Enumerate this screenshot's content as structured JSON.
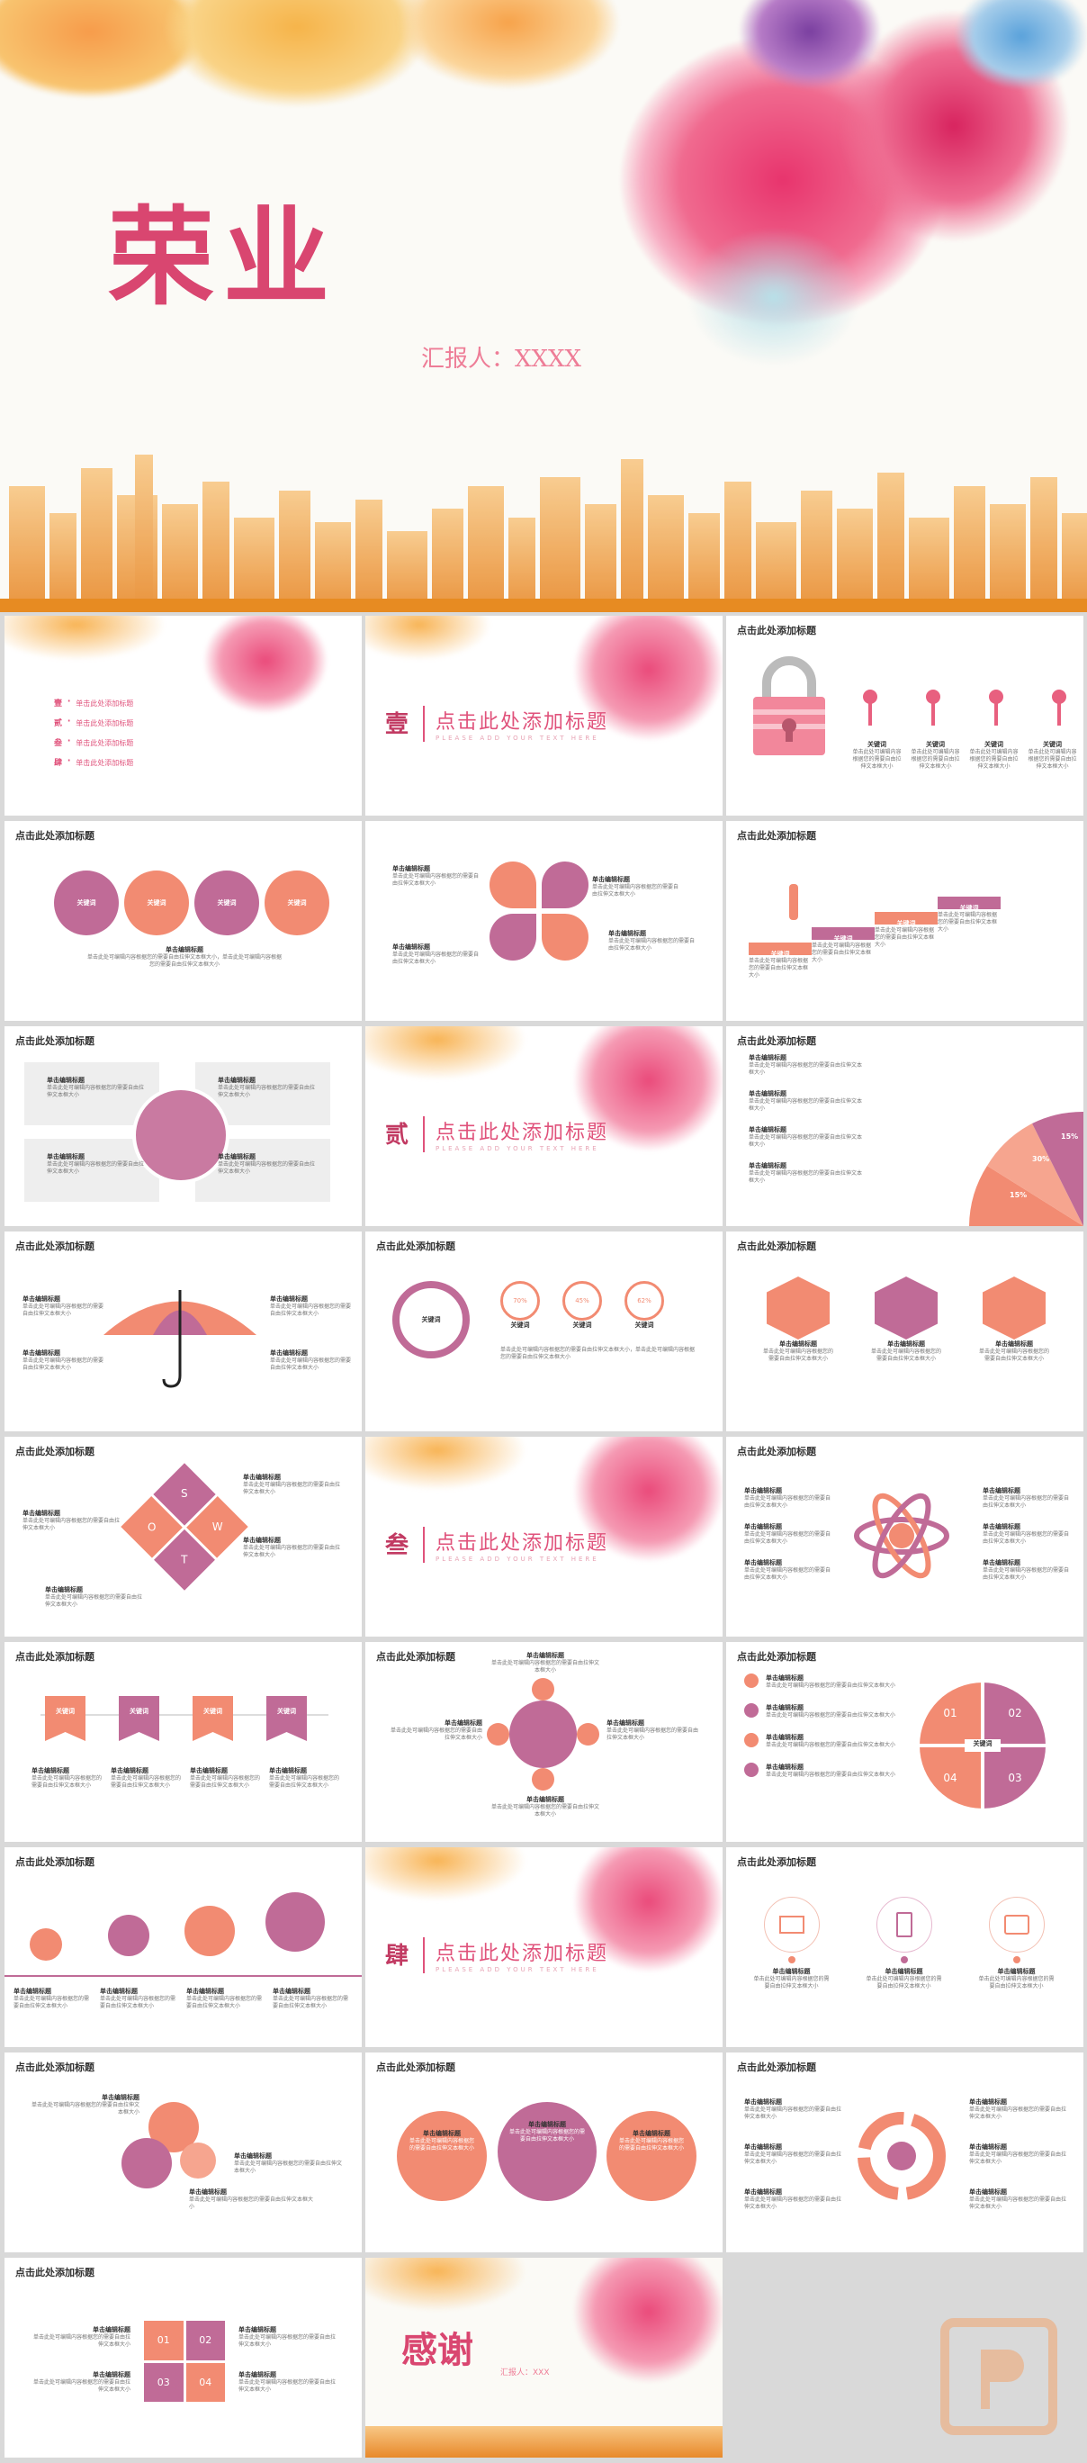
{
  "cover": {
    "title": "荣业",
    "reporter": "汇报人：XXXX"
  },
  "agenda": {
    "items": [
      {
        "num": "壹",
        "text": "单击此处添加标题"
      },
      {
        "num": "贰",
        "text": "单击此处添加标题"
      },
      {
        "num": "叁",
        "text": "单击此处添加标题"
      },
      {
        "num": "肆",
        "text": "单击此处添加标题"
      }
    ]
  },
  "sections": [
    {
      "num": "壹",
      "title": "点击此处添加标题",
      "subtitle": "PLEASE ADD YOUR TEXT HERE"
    },
    {
      "num": "贰",
      "title": "点击此处添加标题",
      "subtitle": "PLEASE ADD YOUR TEXT HERE"
    },
    {
      "num": "叁",
      "title": "点击此处添加标题",
      "subtitle": "PLEASE ADD YOUR TEXT HERE"
    },
    {
      "num": "肆",
      "title": "点击此处添加标题",
      "subtitle": "PLEASE ADD YOUR TEXT HERE"
    }
  ],
  "slide_title": "点击此处添加标题",
  "common": {
    "keyword": "关键词",
    "edit_title": "单击编辑标题",
    "body": "单击此处可编辑内容根据您的需要自由拉伸文本框大小",
    "long_body": "单击此处可编辑内容根据您的需要自由拉伸文本框大小，单击此处可编辑内容根据您的需要自由拉伸文本框大小"
  },
  "percent_pie": {
    "labels": [
      "15%",
      "30%",
      "15%"
    ]
  },
  "rings": {
    "labels": [
      "70%",
      "45%",
      "62%"
    ],
    "values": [
      70,
      45,
      62
    ]
  },
  "swot": {
    "letters": [
      "S",
      "W",
      "O",
      "T"
    ]
  },
  "quadrant": {
    "labels": [
      "01",
      "02",
      "03",
      "04"
    ],
    "center": "关键词"
  },
  "puzzle": {
    "labels": [
      "01",
      "02",
      "03",
      "04"
    ]
  },
  "ending": {
    "title": "感谢",
    "reporter": "汇报人：XXX"
  }
}
